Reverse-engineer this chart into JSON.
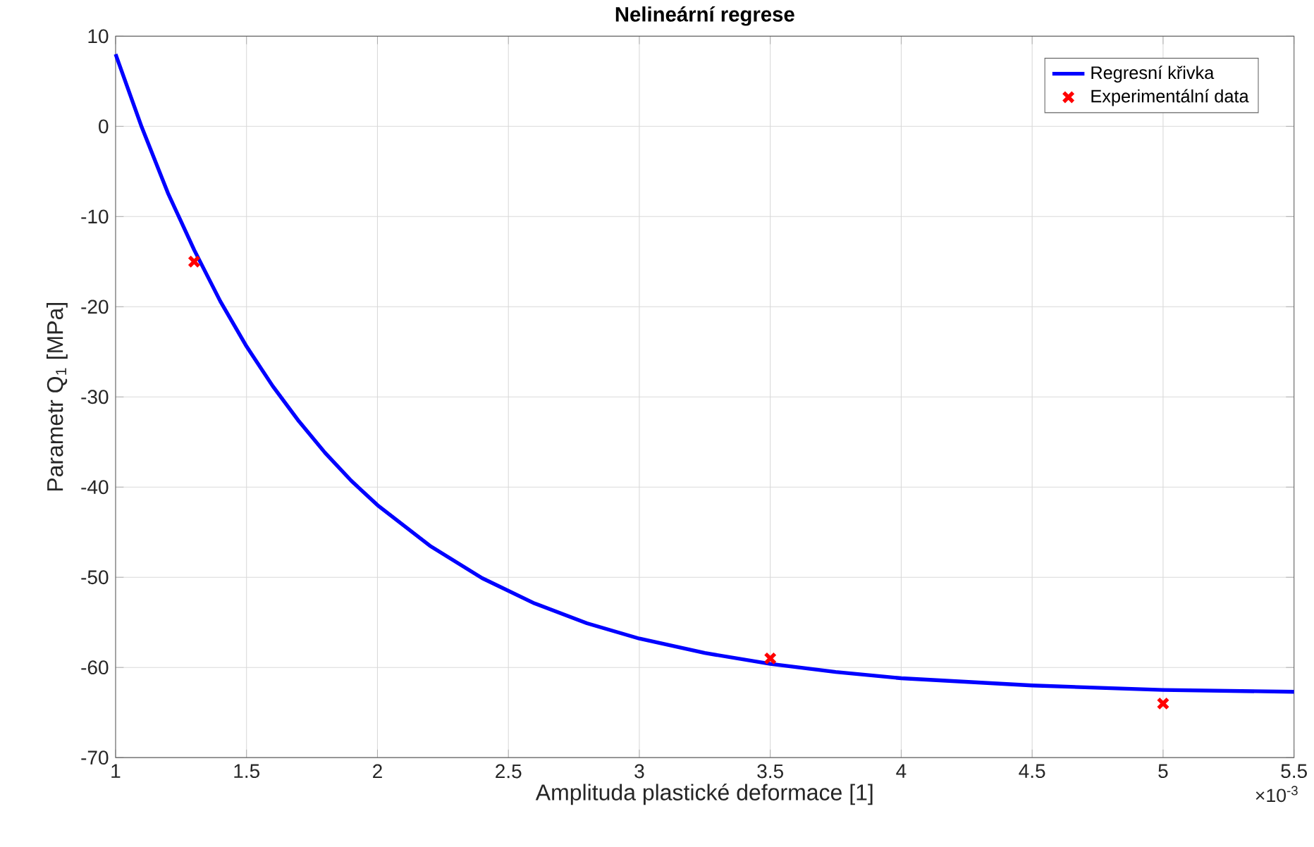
{
  "chart_data": {
    "type": "line",
    "title": "**Nelineární regrese**",
    "xlabel": "Amplituda plastické deformace [1]",
    "ylabel": "Parametr Q$_{1}$ [MPa]",
    "xlim": [
      1,
      5.5
    ],
    "ylim": [
      -70,
      10
    ],
    "xticks": [
      1,
      1.5,
      2,
      2.5,
      3,
      3.5,
      4,
      4.5,
      5,
      5.5
    ],
    "yticks": [
      -70,
      -60,
      -50,
      -40,
      -30,
      -20,
      -10,
      0,
      10
    ],
    "grid": true,
    "legend": "top right",
    "annotations": [
      "×10$^{-3}$"
    ],
    "series": [
      {
        "name": "Regresní křivka",
        "color": "#0000ff",
        "marker": "none",
        "line_style": "solid",
        "x": [
          1,
          1.1,
          1.2,
          1.3,
          1.4,
          1.5,
          1.6,
          1.7,
          1.8,
          1.9,
          2,
          2.2,
          2.4,
          2.6,
          2.8,
          3,
          3.25,
          3.5,
          3.75,
          4,
          4.5,
          5,
          5.5
        ],
        "values": [
          8,
          -0.1,
          -7.4,
          -13.7,
          -19.4,
          -24.4,
          -28.8,
          -32.7,
          -36.2,
          -39.3,
          -42,
          -46.5,
          -50.1,
          -52.9,
          -55.1,
          -56.8,
          -58.4,
          -59.6,
          -60.5,
          -61.2,
          -62,
          -62.5,
          -62.7
        ]
      },
      {
        "name": "Experimentální data",
        "type": "scatter",
        "color": "#ff0000",
        "marker": "cross",
        "x": [
          1.3,
          3.5,
          5
        ],
        "values": [
          -15,
          -59,
          -64
        ]
      }
    ]
  }
}
